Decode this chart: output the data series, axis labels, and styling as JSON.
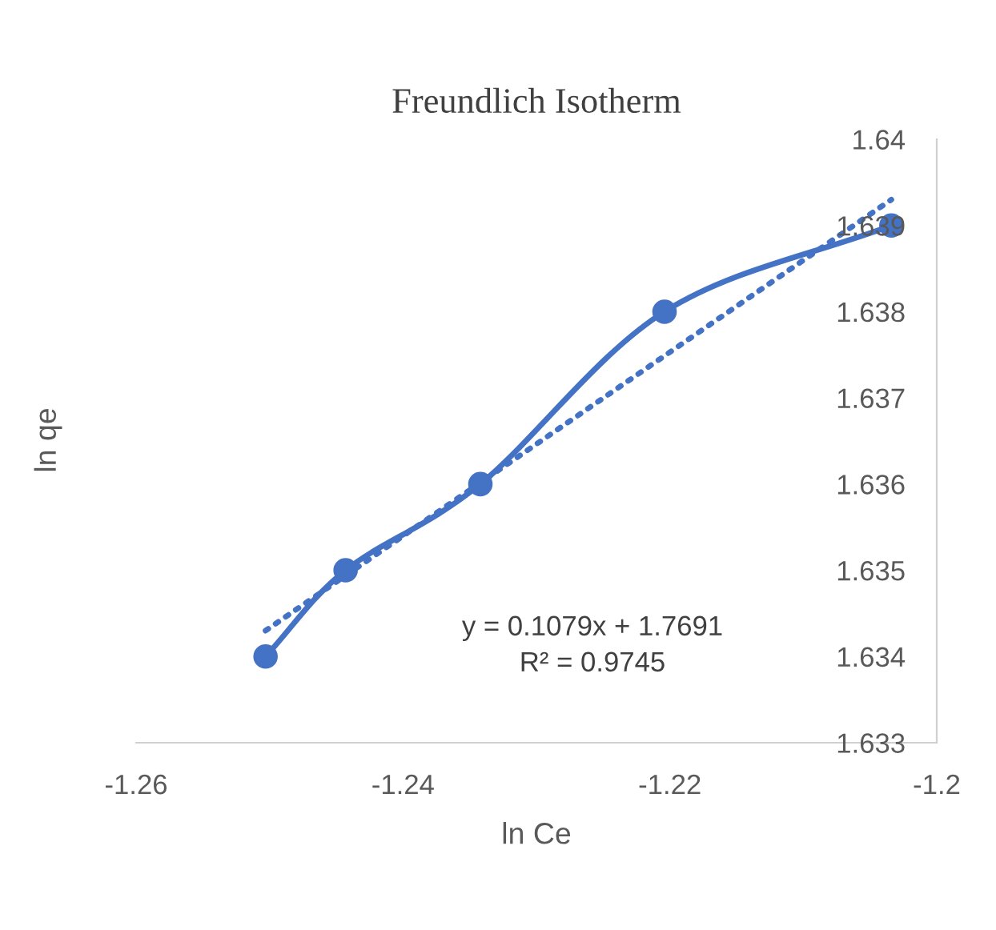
{
  "chart_data": {
    "type": "line",
    "title": "Freundlich Isotherm",
    "xlabel": "ln Ce",
    "ylabel": "ln qe",
    "x": [
      -1.2503,
      -1.2443,
      -1.2342,
      -1.2204,
      -1.2034
    ],
    "series": [
      {
        "color": "#4472c4",
        "values": [
          1.634,
          1.635,
          1.636,
          1.638,
          1.639
        ],
        "marker": "circle",
        "line_style": "solid"
      },
      {
        "type": "line",
        "color": "#4472c4",
        "x": [
          -1.2503,
          -1.2034
        ],
        "values": [
          1.6343,
          1.6393
        ],
        "marker": "none",
        "line_style": "dotted"
      }
    ],
    "xlim": [
      -1.26,
      -1.2
    ],
    "xticks": [
      -1.26,
      -1.24,
      -1.22,
      -1.2
    ],
    "ylim": [
      1.633,
      1.64
    ],
    "yticks": [
      1.633,
      1.634,
      1.635,
      1.636,
      1.637,
      1.638,
      1.639,
      1.64
    ],
    "annotations": [
      "y = 0.1079x + 1.7691\nR² = 0.9745"
    ],
    "grid": false
  }
}
